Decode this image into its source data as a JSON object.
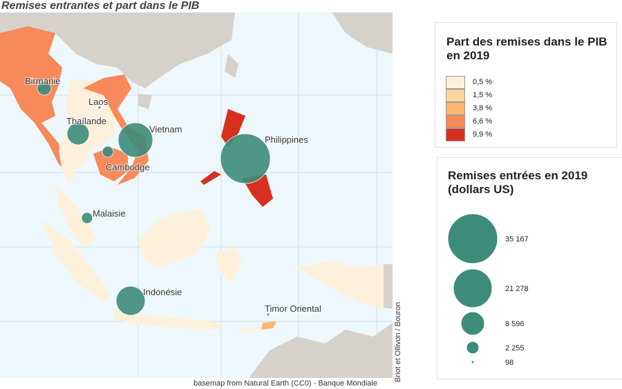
{
  "title": "Remises entrantes et part dans le PIB",
  "map": {
    "labels": [
      "Birmanie",
      "Laos",
      "Thaïlande",
      "Vietnam",
      "Cambodge",
      "Philippines",
      "Malaisie",
      "Indonésie",
      "Timor Oriental"
    ]
  },
  "legend_gdp": {
    "title": "Part des remises dans le PIB en 2019",
    "items": [
      {
        "label": "0,5 %",
        "color": "#fdf0da"
      },
      {
        "label": "1,5 %",
        "color": "#fdd49e"
      },
      {
        "label": "3,8 %",
        "color": "#fdb76e"
      },
      {
        "label": "6,6 %",
        "color": "#f7895a"
      },
      {
        "label": "9,9 %",
        "color": "#d7301f"
      }
    ]
  },
  "legend_remit": {
    "title": "Remises entrées en 2019 (dollars US)",
    "items": [
      "35 167",
      "21 278",
      "8 596",
      "2 255",
      "98"
    ]
  },
  "credit_side": "Briot et Ollivon / Bouron",
  "credit_bottom": "basemap from Natural Earth (CC0) - Banque Mondiale"
}
